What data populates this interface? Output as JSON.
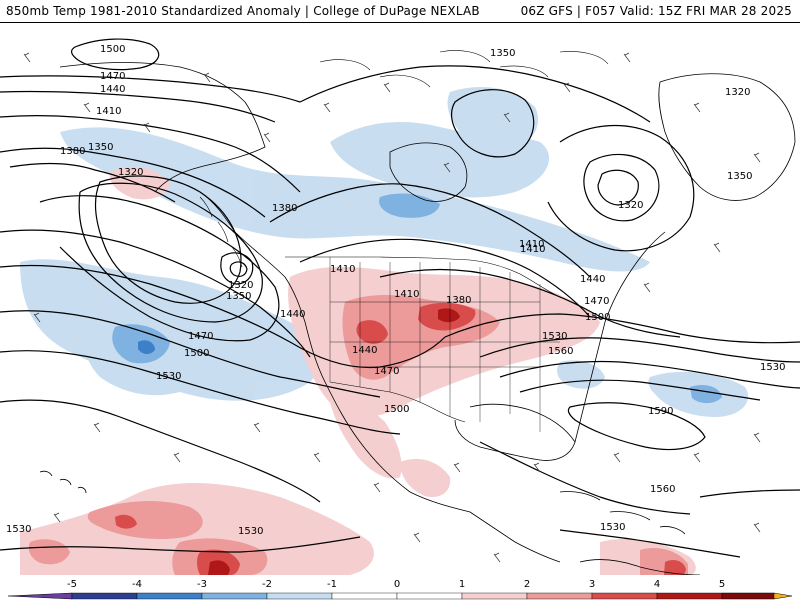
{
  "header": {
    "title_left": "850mb Temp 1981-2010 Standardized Anomaly | College of DuPage NEXLAB",
    "title_right": "06Z GFS | F057 Valid: 15Z FRI MAR 28 2025"
  },
  "colors": {
    "cold_5": "#6b3fa0",
    "cold_4": "#2c3e8f",
    "cold_3": "#3d7fc9",
    "cold_2": "#7fb2e0",
    "cold_1": "#c6dcf0",
    "neutral": "#ffffff",
    "warm_1": "#f5cfcf",
    "warm_2": "#ec9a9a",
    "warm_3": "#d94c4c",
    "warm_4": "#b01818",
    "warm_5": "#7d0a0a",
    "warm_extreme": "#f2b21c"
  },
  "colorbar": {
    "ticks": [
      "-5",
      "-4",
      "-3",
      "-2",
      "-1",
      "0",
      "1",
      "2",
      "3",
      "4",
      "5"
    ],
    "tick_values": [
      -5,
      -4,
      -3,
      -2,
      -1,
      0,
      1,
      2,
      3,
      4,
      5
    ]
  },
  "contour_labels": [
    "1500",
    "1470",
    "1440",
    "1410",
    "1380",
    "1350",
    "1320",
    "1320",
    "1350",
    "1380",
    "1410",
    "1440",
    "1470",
    "1500",
    "1530",
    "1410",
    "1410",
    "1380",
    "1440",
    "1470",
    "1500",
    "1350",
    "1320",
    "1320",
    "1350",
    "1410",
    "1440",
    "1470",
    "1500",
    "1530",
    "1560",
    "1530",
    "1590",
    "1560",
    "1530",
    "1530",
    "1530"
  ]
}
